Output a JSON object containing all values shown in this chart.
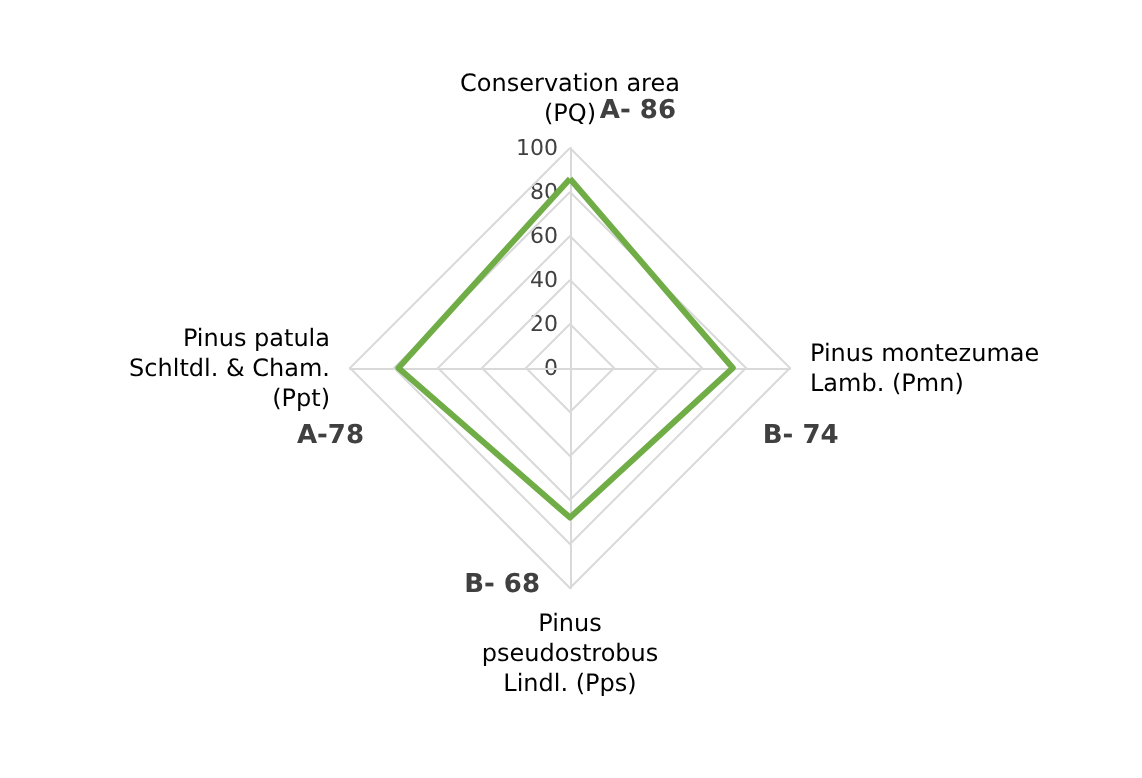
{
  "chart_data": {
    "type": "radar",
    "categories": [
      "Conservation area\n(PQ)",
      "Pinus montezumae\nLamb. (Pmn)",
      "Pinus\npseudostrobus\nLindl. (Pps)",
      "Pinus patula\nSchltdl. & Cham.\n(Ppt)"
    ],
    "series": [
      {
        "color": "#70ad47",
        "values": [
          86,
          74,
          68,
          78
        ],
        "value_labels": [
          "A- 86",
          "B- 74",
          "B- 68",
          "A-78"
        ]
      }
    ],
    "ylim": [
      0,
      100
    ],
    "yticks": [
      0,
      20,
      40,
      60,
      80,
      100
    ],
    "grid": true
  }
}
